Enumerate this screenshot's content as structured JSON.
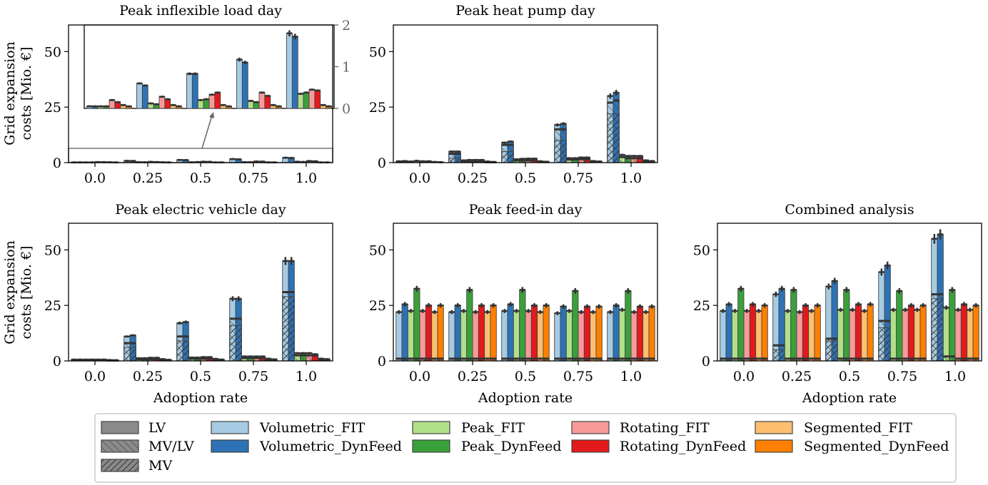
{
  "chart_data": {
    "type": "bar",
    "categories": [
      "0.0",
      "0.25",
      "0.5",
      "0.75",
      "1.0"
    ],
    "scenario_order": [
      "Volumetric_FIT",
      "Volumetric_DynFeed",
      "Peak_FIT",
      "Peak_DynFeed",
      "Rotating_FIT",
      "Rotating_DynFeed",
      "Segmented_FIT",
      "Segmented_DynFeed"
    ],
    "scenario_colors": [
      "#a6cbe3",
      "#2d72b4",
      "#b2df8a",
      "#3aa03a",
      "#f89a9a",
      "#e31a1c",
      "#fdbf6f",
      "#ff7f00"
    ],
    "legend": {
      "levels": [
        "LV",
        "MV/LV",
        "MV"
      ],
      "scenarios": [
        "Volumetric_FIT",
        "Volumetric_DynFeed",
        "Peak_FIT",
        "Peak_DynFeed",
        "Rotating_FIT",
        "Rotating_DynFeed",
        "Segmented_FIT",
        "Segmented_DynFeed"
      ],
      "placement": "bottom-center"
    },
    "panels": [
      {
        "title": "Peak inflexible load day",
        "ylabel": [
          "Grid expansion",
          "costs [Mio. €]"
        ],
        "xlabel": "",
        "ylim": [
          0,
          62
        ],
        "yticks": [
          0,
          25,
          50
        ],
        "mv": [
          [
            0,
            0,
            0,
            0,
            0,
            0,
            0,
            0
          ],
          [
            0,
            0,
            0,
            0,
            0,
            0,
            0,
            0
          ],
          [
            0,
            0,
            0,
            0,
            0,
            0,
            0,
            0
          ],
          [
            0,
            0,
            0,
            0,
            0,
            0,
            0,
            0
          ],
          [
            0,
            0,
            0,
            0,
            0,
            0,
            0,
            0
          ]
        ],
        "mvlv": [
          [
            0,
            0,
            0,
            0,
            0,
            0,
            0,
            0
          ],
          [
            0,
            0,
            0,
            0,
            0,
            0,
            0,
            0
          ],
          [
            0,
            0,
            0,
            0,
            0,
            0,
            0,
            0
          ],
          [
            0,
            0,
            0,
            0,
            0,
            0,
            0,
            0
          ],
          [
            0,
            0,
            0,
            0,
            0,
            0,
            0,
            0
          ]
        ],
        "total": [
          [
            0.1,
            0.1,
            0.1,
            0.1,
            0.25,
            0.2,
            0.15,
            0.1
          ],
          [
            0.8,
            0.75,
            0.2,
            0.15,
            0.35,
            0.25,
            0.15,
            0.1
          ],
          [
            1.2,
            1.15,
            0.15,
            0.25,
            0.4,
            0.35,
            0.1,
            0.1
          ],
          [
            1.6,
            1.5,
            0.2,
            0.2,
            0.5,
            0.45,
            0.1,
            0.1
          ],
          [
            2.2,
            2.1,
            0.4,
            0.3,
            0.7,
            0.6,
            0.1,
            0.1
          ]
        ],
        "inset": {
          "ylim": [
            0,
            2
          ],
          "yticks": [
            0,
            1,
            2
          ],
          "values": [
            [
              0.05,
              0.05,
              0.05,
              0.05,
              0.2,
              0.15,
              0.08,
              0.05
            ],
            [
              0.6,
              0.55,
              0.12,
              0.1,
              0.28,
              0.22,
              0.08,
              0.05
            ],
            [
              0.83,
              0.83,
              0.2,
              0.22,
              0.33,
              0.38,
              0.08,
              0.05
            ],
            [
              1.17,
              1.1,
              0.18,
              0.15,
              0.38,
              0.3,
              0.08,
              0.05
            ],
            [
              1.8,
              1.72,
              0.35,
              0.38,
              0.45,
              0.43,
              0.08,
              0.05
            ]
          ]
        }
      },
      {
        "title": "Peak heat pump day",
        "ylabel": [
          "",
          ""
        ],
        "xlabel": "",
        "ylim": [
          0,
          62
        ],
        "yticks": [
          0,
          25,
          50
        ],
        "mv": [
          [
            0,
            0,
            0,
            0,
            0,
            0,
            0,
            0
          ],
          [
            2,
            2,
            0,
            0,
            0,
            0,
            0,
            0
          ],
          [
            5,
            5,
            0,
            0,
            0,
            0,
            0,
            0
          ],
          [
            10,
            10,
            0,
            0,
            0,
            0,
            0,
            0
          ],
          [
            22,
            22,
            0,
            0,
            0,
            0,
            0,
            0
          ]
        ],
        "mvlv": [
          [
            0.3,
            0.4,
            0,
            0,
            0,
            0,
            0,
            0
          ],
          [
            4,
            4,
            0.5,
            0.6,
            0.4,
            0.4,
            0.2,
            0.2
          ],
          [
            8,
            8,
            1,
            1,
            1,
            1,
            0.3,
            0.3
          ],
          [
            15,
            15,
            1.4,
            1.4,
            1.5,
            1.5,
            0.4,
            0.4
          ],
          [
            27,
            28,
            2.5,
            2,
            2,
            2,
            0.5,
            0.5
          ]
        ],
        "total": [
          [
            0.6,
            0.7,
            0.5,
            0.8,
            0.6,
            0.6,
            0.3,
            0.2
          ],
          [
            5,
            5,
            1,
            1.2,
            1.2,
            1.2,
            0.5,
            0.3
          ],
          [
            9,
            9.5,
            1.5,
            1.7,
            1.8,
            1.8,
            0.6,
            0.4
          ],
          [
            17,
            17.5,
            2,
            2,
            2.3,
            2.3,
            0.7,
            0.5
          ],
          [
            30,
            31.5,
            3.5,
            3,
            3,
            3,
            1,
            0.7
          ]
        ]
      },
      {
        "title": "Peak electric vehicle day",
        "ylabel": [
          "Grid expansion",
          "costs [Mio. €]"
        ],
        "xlabel": "Adoption rate",
        "ylim": [
          0,
          62
        ],
        "yticks": [
          0,
          25,
          50
        ],
        "mv": [
          [
            0,
            0,
            0,
            0,
            0,
            0,
            0,
            0
          ],
          [
            6,
            6,
            0,
            0,
            0,
            0,
            0,
            0
          ],
          [
            9,
            9,
            0,
            0,
            0,
            0,
            0,
            0
          ],
          [
            16,
            16,
            0,
            0,
            0,
            0,
            0,
            0
          ],
          [
            29,
            29,
            0,
            0,
            0,
            0,
            0,
            0
          ]
        ],
        "mvlv": [
          [
            0.3,
            0.3,
            0.3,
            0.3,
            0.3,
            0.3,
            0.2,
            0.2
          ],
          [
            8,
            8,
            0.8,
            0.8,
            0.8,
            0.8,
            0.3,
            0.3
          ],
          [
            11,
            11,
            1,
            1,
            1,
            1,
            0.4,
            0.4
          ],
          [
            19,
            19,
            1.3,
            1.3,
            1.3,
            1.3,
            0.5,
            0.5
          ],
          [
            31,
            31,
            2.5,
            2.5,
            2.5,
            2.5,
            0.6,
            0.6
          ]
        ],
        "total": [
          [
            0.6,
            0.6,
            0.6,
            0.6,
            0.6,
            0.6,
            0.4,
            0.3
          ],
          [
            11,
            11.5,
            1.2,
            1.2,
            1.4,
            1.4,
            0.8,
            0.5
          ],
          [
            17,
            17.5,
            1.5,
            1.5,
            1.7,
            1.7,
            0.9,
            0.6
          ],
          [
            28,
            28,
            2,
            2,
            2,
            2,
            1,
            0.7
          ],
          [
            45,
            45,
            3.5,
            3.5,
            3.5,
            3,
            1,
            0.8
          ]
        ]
      },
      {
        "title": "Peak feed-in day",
        "ylabel": [
          "",
          ""
        ],
        "xlabel": "Adoption rate",
        "ylim": [
          0,
          62
        ],
        "yticks": [
          0,
          25,
          50
        ],
        "mv": [
          [
            0,
            0,
            0,
            0,
            0,
            0,
            0,
            0
          ],
          [
            0,
            0,
            0,
            0,
            0,
            0,
            0,
            0
          ],
          [
            0,
            0,
            0,
            0,
            0,
            0,
            0,
            0
          ],
          [
            0,
            0,
            0,
            0,
            0,
            0,
            0,
            0
          ],
          [
            0,
            0,
            0,
            0,
            0,
            0,
            0,
            0
          ]
        ],
        "mvlv": [
          [
            1,
            1,
            1,
            1,
            1,
            1,
            1,
            1
          ],
          [
            1,
            1,
            1,
            1,
            1,
            1,
            1,
            1
          ],
          [
            1,
            1,
            1,
            1,
            1,
            1,
            1,
            1
          ],
          [
            1,
            1,
            1,
            1,
            1,
            1,
            1,
            1
          ],
          [
            1,
            1,
            1,
            1,
            1,
            1,
            1,
            1
          ]
        ],
        "total": [
          [
            22,
            25.5,
            22.5,
            32.5,
            22.5,
            25,
            22,
            25
          ],
          [
            22,
            25,
            22.5,
            32,
            22,
            25,
            22,
            25
          ],
          [
            22.5,
            25.5,
            22.5,
            32,
            22.5,
            25,
            22,
            25
          ],
          [
            21.5,
            24.5,
            22.5,
            31.5,
            22,
            24.5,
            22,
            24.5
          ],
          [
            22,
            25,
            23,
            31.5,
            22,
            24.5,
            22,
            24.5
          ]
        ]
      },
      {
        "title": "Combined analysis",
        "ylabel": [
          "",
          ""
        ],
        "xlabel": "Adoption rate",
        "ylim": [
          0,
          62
        ],
        "yticks": [
          0,
          25,
          50
        ],
        "mv": [
          [
            0,
            0,
            0,
            0,
            0,
            0,
            0,
            0
          ],
          [
            5,
            5,
            0,
            0,
            0,
            0,
            0,
            0
          ],
          [
            9,
            9,
            0,
            0,
            0,
            0,
            0,
            0
          ],
          [
            15,
            15,
            0,
            0,
            0,
            0,
            0,
            0
          ],
          [
            28,
            28,
            0,
            0,
            0,
            0,
            0,
            0
          ]
        ],
        "mvlv": [
          [
            1,
            1,
            1,
            1,
            1,
            1,
            1,
            1
          ],
          [
            7,
            7,
            1,
            1,
            1,
            1,
            1,
            1
          ],
          [
            10,
            10,
            1,
            1,
            1,
            1,
            1,
            1
          ],
          [
            18,
            18,
            1,
            1,
            1,
            1,
            1,
            1
          ],
          [
            30,
            30,
            2,
            2,
            1,
            1,
            1,
            1
          ]
        ],
        "total": [
          [
            22.5,
            25.5,
            22.5,
            32.5,
            22.5,
            25.5,
            22.5,
            25
          ],
          [
            30,
            32.5,
            22.5,
            32,
            22,
            25,
            22.5,
            25
          ],
          [
            33.5,
            36,
            23,
            32,
            23,
            25.5,
            22.5,
            25.5
          ],
          [
            40,
            43,
            23,
            31.5,
            23,
            25,
            23,
            25
          ],
          [
            55,
            57,
            24,
            32,
            23,
            25.5,
            23,
            25
          ]
        ]
      }
    ]
  }
}
